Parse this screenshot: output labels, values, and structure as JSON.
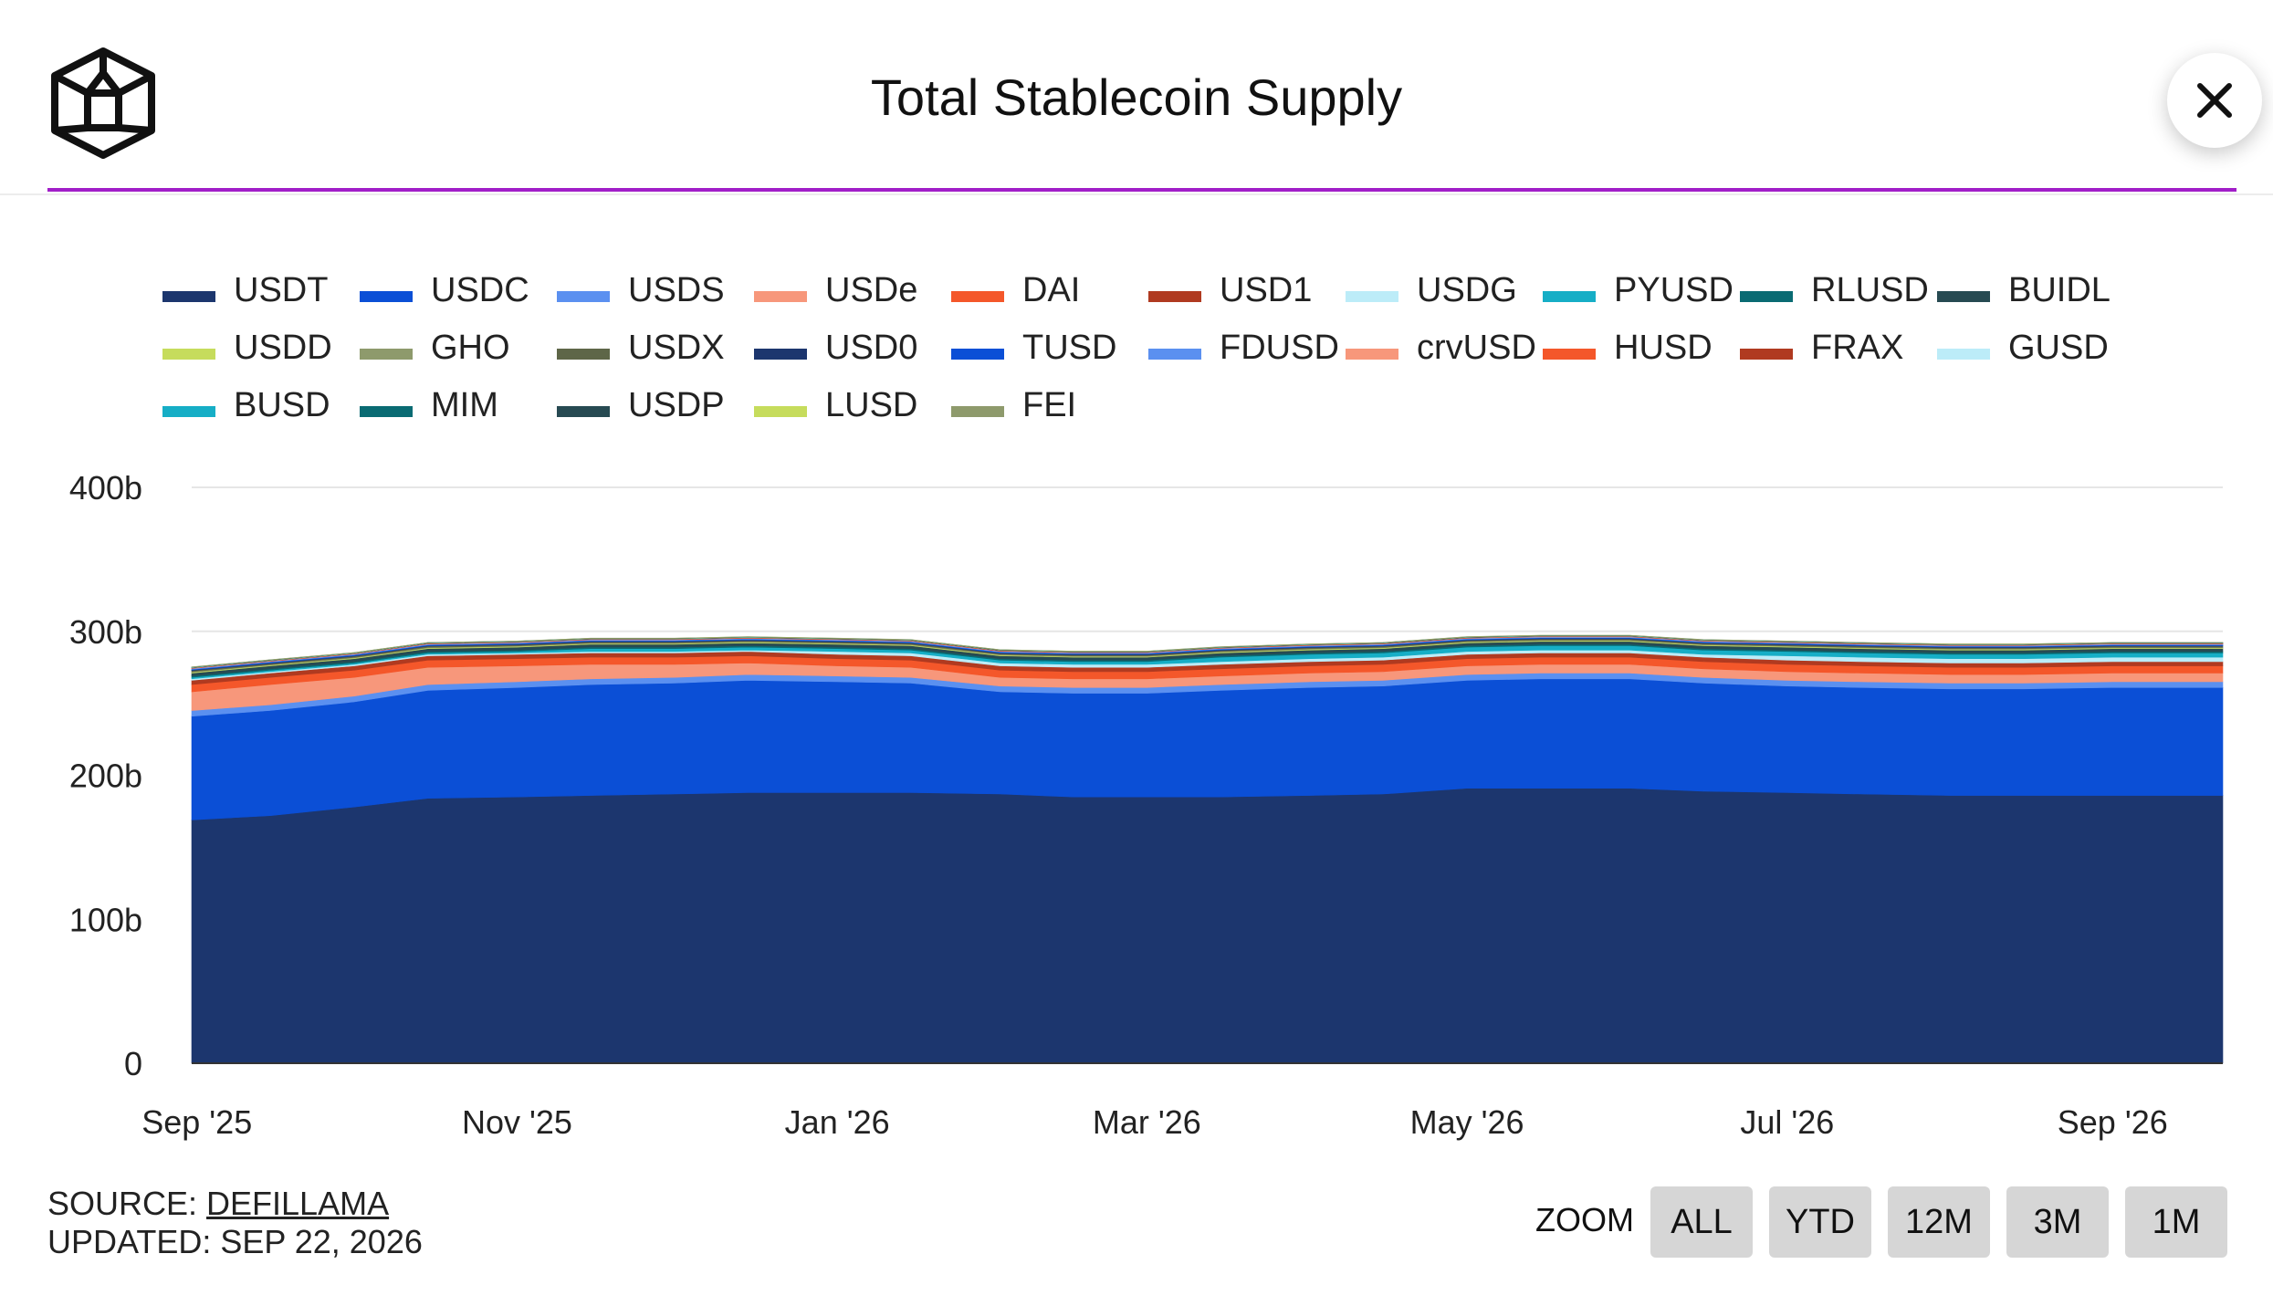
{
  "header": {
    "title": "Total Stablecoin Supply",
    "logo_icon": "cube-logo-icon",
    "close_icon": "close-icon",
    "accent_color": "#a11ec8"
  },
  "chart_data": {
    "type": "area",
    "stacked": true,
    "title": "Total Stablecoin Supply",
    "xlabel": "",
    "ylabel": "",
    "ylim": [
      0,
      400
    ],
    "y_unit": "b",
    "y_ticks": [
      "0",
      "100b",
      "200b",
      "300b",
      "400b"
    ],
    "x_ticks": [
      "Sep '25",
      "Nov '25",
      "Jan '26",
      "Mar '26",
      "May '26",
      "Jul '26",
      "Sep '26"
    ],
    "x_tick_dates": [
      "2025-09-01",
      "2025-11-01",
      "2026-01-01",
      "2026-03-01",
      "2026-05-01",
      "2026-07-01",
      "2026-09-01"
    ],
    "grid": "horizontal",
    "legend_position": "top",
    "x": [
      "2025-08-31",
      "2025-09-15",
      "2025-10-01",
      "2025-10-15",
      "2025-11-01",
      "2025-11-15",
      "2025-12-01",
      "2025-12-15",
      "2026-01-01",
      "2026-01-15",
      "2026-02-01",
      "2026-02-15",
      "2026-03-01",
      "2026-03-15",
      "2026-04-01",
      "2026-04-15",
      "2026-05-01",
      "2026-05-15",
      "2026-06-01",
      "2026-06-15",
      "2026-07-01",
      "2026-07-15",
      "2026-08-01",
      "2026-08-15",
      "2026-09-01",
      "2026-09-15",
      "2026-09-22"
    ],
    "series": [
      {
        "name": "USDT",
        "color": "#1c366e",
        "values": [
          169,
          172,
          178,
          184,
          185,
          186,
          187,
          188,
          188,
          188,
          187,
          185,
          185,
          185,
          186,
          187,
          191,
          191,
          191,
          189,
          188,
          187,
          186,
          186,
          186,
          186,
          186
        ]
      },
      {
        "name": "USDC",
        "color": "#0b4fd6",
        "values": [
          72,
          73,
          73,
          75,
          76,
          77,
          77,
          78,
          77,
          76,
          71,
          72,
          72,
          74,
          75,
          75,
          75,
          76,
          76,
          75,
          74,
          74,
          74,
          74,
          75,
          75,
          75
        ]
      },
      {
        "name": "USDS",
        "color": "#5b90f0",
        "values": [
          4,
          4,
          4,
          4,
          4,
          4,
          4,
          4,
          4,
          4,
          4,
          4,
          4,
          4,
          4,
          4,
          4,
          4,
          4,
          4,
          4,
          4,
          4,
          4,
          4,
          4,
          4
        ]
      },
      {
        "name": "USDe",
        "color": "#f7977b",
        "values": [
          13,
          14,
          13,
          12,
          11,
          10,
          9,
          8,
          7,
          7,
          6,
          6,
          6,
          6,
          6,
          6,
          6,
          6,
          6,
          6,
          6,
          6,
          6,
          6,
          6,
          6,
          6
        ]
      },
      {
        "name": "DAI",
        "color": "#f4572a",
        "values": [
          5,
          5,
          5,
          5,
          5,
          5,
          5,
          5,
          5,
          5,
          5,
          5,
          5,
          5,
          5,
          5,
          5,
          5,
          5,
          5,
          5,
          5,
          5,
          5,
          5,
          5,
          5
        ]
      },
      {
        "name": "USD1",
        "color": "#b03a20",
        "values": [
          3,
          3,
          3,
          3,
          3,
          3,
          3,
          3,
          3,
          3,
          3,
          3,
          3,
          3,
          3,
          3,
          3,
          3,
          3,
          3,
          3,
          3,
          3,
          3,
          3,
          3,
          3
        ]
      },
      {
        "name": "USDG",
        "color": "#bcecf8",
        "values": [
          1,
          1,
          1,
          1,
          1,
          1,
          1,
          1,
          2,
          2,
          2,
          2,
          2,
          2,
          2,
          2,
          2,
          2,
          2,
          2,
          3,
          3,
          3,
          3,
          3,
          3,
          3
        ]
      },
      {
        "name": "PYUSD",
        "color": "#16aec6",
        "values": [
          1,
          1,
          1,
          1,
          1,
          2,
          2,
          2,
          2,
          2,
          2,
          2,
          2,
          3,
          3,
          3,
          3,
          3,
          3,
          3,
          3,
          3,
          3,
          3,
          3,
          3,
          3
        ]
      },
      {
        "name": "RLUSD",
        "color": "#0a6b73",
        "values": [
          1,
          1,
          1,
          1,
          1,
          1,
          1,
          1,
          1,
          1,
          1,
          1,
          1,
          1,
          1,
          1,
          1,
          1,
          1,
          1,
          1,
          1,
          1,
          1,
          1,
          1,
          1
        ]
      },
      {
        "name": "BUIDL",
        "color": "#274a52",
        "values": [
          2,
          2,
          2,
          2,
          2,
          2,
          2,
          2,
          2,
          2,
          2,
          2,
          2,
          2,
          2,
          2,
          2,
          2,
          2,
          2,
          2,
          2,
          2,
          2,
          2,
          2,
          2
        ]
      },
      {
        "name": "USDD",
        "color": "#c6dc5c",
        "values": [
          0.5,
          0.5,
          0.5,
          0.5,
          0.5,
          0.5,
          0.5,
          0.5,
          0.5,
          0.5,
          0.5,
          0.5,
          0.5,
          0.5,
          0.5,
          0.5,
          0.5,
          0.5,
          0.5,
          0.5,
          0.5,
          0.5,
          0.5,
          0.5,
          0.5,
          0.5,
          0.5
        ]
      },
      {
        "name": "GHO",
        "color": "#8e9a6c",
        "values": [
          0.4,
          0.4,
          0.4,
          0.4,
          0.4,
          0.4,
          0.4,
          0.4,
          0.4,
          0.4,
          0.4,
          0.4,
          0.4,
          0.4,
          0.4,
          0.4,
          0.4,
          0.4,
          0.4,
          0.4,
          0.4,
          0.4,
          0.4,
          0.4,
          0.4,
          0.4,
          0.4
        ]
      },
      {
        "name": "USDX",
        "color": "#5e6648",
        "values": [
          0.8,
          0.8,
          0.8,
          0.8,
          0.8,
          0.8,
          0.8,
          0.8,
          0.8,
          0.8,
          0.8,
          0.8,
          0.8,
          0.8,
          0.8,
          0.8,
          0.8,
          0.8,
          0.8,
          0.8,
          0.8,
          0.8,
          0.8,
          0.8,
          0.8,
          0.8,
          0.8
        ]
      },
      {
        "name": "USD0",
        "color": "#1c366e",
        "values": [
          0.4,
          0.4,
          0.4,
          0.4,
          0.4,
          0.4,
          0.4,
          0.4,
          0.4,
          0.4,
          0.4,
          0.4,
          0.4,
          0.4,
          0.4,
          0.4,
          0.4,
          0.4,
          0.4,
          0.4,
          0.4,
          0.4,
          0.4,
          0.4,
          0.4,
          0.4,
          0.4
        ]
      },
      {
        "name": "TUSD",
        "color": "#0b4fd6",
        "values": [
          0.5,
          0.5,
          0.5,
          0.5,
          0.5,
          0.5,
          0.5,
          0.5,
          0.5,
          0.5,
          0.5,
          0.5,
          0.5,
          0.5,
          0.5,
          0.5,
          0.5,
          0.5,
          0.5,
          0.5,
          0.5,
          0.5,
          0.5,
          0.5,
          0.5,
          0.5,
          0.5
        ]
      },
      {
        "name": "FDUSD",
        "color": "#5b90f0",
        "values": [
          0.5,
          0.5,
          0.5,
          0.5,
          0.5,
          0.5,
          0.5,
          0.5,
          0.5,
          0.5,
          0.5,
          0.5,
          0.5,
          0.5,
          0.5,
          0.5,
          0.5,
          0.5,
          0.5,
          0.5,
          0.5,
          0.5,
          0.5,
          0.5,
          0.5,
          0.5,
          0.5
        ]
      },
      {
        "name": "crvUSD",
        "color": "#f7977b",
        "values": [
          0.2,
          0.2,
          0.2,
          0.2,
          0.2,
          0.2,
          0.2,
          0.2,
          0.2,
          0.2,
          0.2,
          0.2,
          0.2,
          0.2,
          0.2,
          0.2,
          0.2,
          0.2,
          0.2,
          0.2,
          0.2,
          0.2,
          0.2,
          0.2,
          0.2,
          0.2,
          0.2
        ]
      },
      {
        "name": "HUSD",
        "color": "#f4572a",
        "values": [
          0.1,
          0.1,
          0.1,
          0.1,
          0.1,
          0.1,
          0.1,
          0.1,
          0.1,
          0.1,
          0.1,
          0.1,
          0.1,
          0.1,
          0.1,
          0.1,
          0.1,
          0.1,
          0.1,
          0.1,
          0.1,
          0.1,
          0.1,
          0.1,
          0.1,
          0.1,
          0.1
        ]
      },
      {
        "name": "FRAX",
        "color": "#b03a20",
        "values": [
          0.3,
          0.3,
          0.3,
          0.3,
          0.3,
          0.3,
          0.3,
          0.3,
          0.3,
          0.3,
          0.3,
          0.3,
          0.3,
          0.3,
          0.3,
          0.3,
          0.3,
          0.3,
          0.3,
          0.3,
          0.3,
          0.3,
          0.3,
          0.3,
          0.3,
          0.3,
          0.3
        ]
      },
      {
        "name": "GUSD",
        "color": "#bcecf8",
        "values": [
          0.1,
          0.1,
          0.1,
          0.1,
          0.1,
          0.1,
          0.1,
          0.1,
          0.1,
          0.1,
          0.1,
          0.1,
          0.1,
          0.1,
          0.1,
          0.1,
          0.1,
          0.1,
          0.1,
          0.1,
          0.1,
          0.1,
          0.1,
          0.1,
          0.1,
          0.1,
          0.1
        ]
      },
      {
        "name": "BUSD",
        "color": "#16aec6",
        "values": [
          0.1,
          0.1,
          0.1,
          0.1,
          0.1,
          0.1,
          0.1,
          0.1,
          0.1,
          0.1,
          0.1,
          0.1,
          0.1,
          0.1,
          0.1,
          0.1,
          0.1,
          0.1,
          0.1,
          0.1,
          0.1,
          0.1,
          0.1,
          0.1,
          0.1,
          0.1,
          0.1
        ]
      },
      {
        "name": "MIM",
        "color": "#0a6b73",
        "values": [
          0.1,
          0.1,
          0.1,
          0.1,
          0.1,
          0.1,
          0.1,
          0.1,
          0.1,
          0.1,
          0.1,
          0.1,
          0.1,
          0.1,
          0.1,
          0.1,
          0.1,
          0.1,
          0.1,
          0.1,
          0.1,
          0.1,
          0.1,
          0.1,
          0.1,
          0.1,
          0.1
        ]
      },
      {
        "name": "USDP",
        "color": "#274a52",
        "values": [
          0.1,
          0.1,
          0.1,
          0.1,
          0.1,
          0.1,
          0.1,
          0.1,
          0.1,
          0.1,
          0.1,
          0.1,
          0.1,
          0.1,
          0.1,
          0.1,
          0.1,
          0.1,
          0.1,
          0.1,
          0.1,
          0.1,
          0.1,
          0.1,
          0.1,
          0.1,
          0.1
        ]
      },
      {
        "name": "LUSD",
        "color": "#c6dc5c",
        "values": [
          0.1,
          0.1,
          0.1,
          0.1,
          0.1,
          0.1,
          0.1,
          0.1,
          0.1,
          0.1,
          0.1,
          0.1,
          0.1,
          0.1,
          0.1,
          0.1,
          0.1,
          0.1,
          0.1,
          0.1,
          0.1,
          0.1,
          0.1,
          0.1,
          0.1,
          0.1,
          0.1
        ]
      },
      {
        "name": "FEI",
        "color": "#8e9a6c",
        "values": [
          0.1,
          0.1,
          0.1,
          0.1,
          0.1,
          0.1,
          0.1,
          0.1,
          0.1,
          0.1,
          0.1,
          0.1,
          0.1,
          0.1,
          0.1,
          0.1,
          0.1,
          0.1,
          0.1,
          0.1,
          0.1,
          0.1,
          0.1,
          0.1,
          0.1,
          0.1,
          0.1
        ]
      }
    ]
  },
  "footer": {
    "source_label": "SOURCE: ",
    "source_link": "DEFILLAMA",
    "updated_label": "UPDATED: SEP 22, 2026"
  },
  "zoom": {
    "label": "ZOOM",
    "buttons": [
      "ALL",
      "YTD",
      "12M",
      "3M",
      "1M"
    ]
  }
}
